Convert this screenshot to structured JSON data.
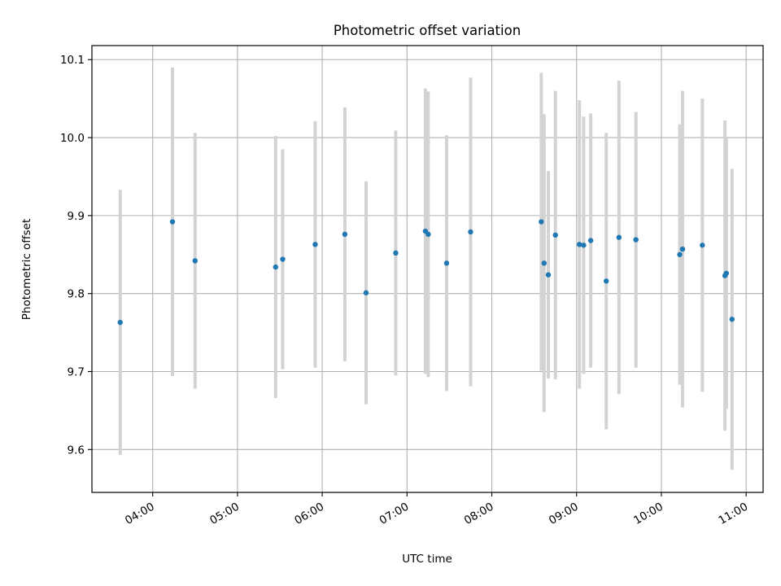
{
  "chart_data": {
    "type": "scatter",
    "title": "Photometric offset variation",
    "xlabel": "UTC time",
    "ylabel": "Photometric offset",
    "x_unit": "UTC time (HH:MM)",
    "xlim": [
      "03:17",
      "11:12"
    ],
    "ylim": [
      9.545,
      10.118
    ],
    "grid": true,
    "xticks": [
      "04:00",
      "05:00",
      "06:00",
      "07:00",
      "08:00",
      "09:00",
      "10:00",
      "11:00"
    ],
    "yticks": [
      "9.6",
      "9.7",
      "9.8",
      "9.9",
      "10.0",
      "10.1"
    ],
    "xticks_rotation_deg": 30,
    "marker_color": "#1f77b4",
    "errorbar_color": "#d3d3d3",
    "series": [
      {
        "points": [
          {
            "x": "03:37",
            "y": 9.763,
            "yerr": 0.17
          },
          {
            "x": "04:14",
            "y": 9.892,
            "yerr": 0.198
          },
          {
            "x": "04:30",
            "y": 9.842,
            "yerr": 0.164
          },
          {
            "x": "05:27",
            "y": 9.834,
            "yerr": 0.168
          },
          {
            "x": "05:32",
            "y": 9.844,
            "yerr": 0.141
          },
          {
            "x": "05:55",
            "y": 9.863,
            "yerr": 0.158
          },
          {
            "x": "06:16",
            "y": 9.876,
            "yerr": 0.163
          },
          {
            "x": "06:31",
            "y": 9.801,
            "yerr": 0.143
          },
          {
            "x": "06:52",
            "y": 9.852,
            "yerr": 0.157
          },
          {
            "x": "07:13",
            "y": 9.88,
            "yerr": 0.183
          },
          {
            "x": "07:15",
            "y": 9.876,
            "yerr": 0.183
          },
          {
            "x": "07:28",
            "y": 9.839,
            "yerr": 0.164
          },
          {
            "x": "07:45",
            "y": 9.879,
            "yerr": 0.198
          },
          {
            "x": "08:35",
            "y": 9.892,
            "yerr": 0.191
          },
          {
            "x": "08:37",
            "y": 9.839,
            "yerr": 0.191
          },
          {
            "x": "08:40",
            "y": 9.824,
            "yerr": 0.133
          },
          {
            "x": "08:45",
            "y": 9.875,
            "yerr": 0.185
          },
          {
            "x": "09:02",
            "y": 9.863,
            "yerr": 0.185
          },
          {
            "x": "09:05",
            "y": 9.862,
            "yerr": 0.165
          },
          {
            "x": "09:10",
            "y": 9.868,
            "yerr": 0.163
          },
          {
            "x": "09:21",
            "y": 9.816,
            "yerr": 0.19
          },
          {
            "x": "09:30",
            "y": 9.872,
            "yerr": 0.201
          },
          {
            "x": "09:42",
            "y": 9.869,
            "yerr": 0.164
          },
          {
            "x": "10:13",
            "y": 9.85,
            "yerr": 0.167
          },
          {
            "x": "10:15",
            "y": 9.857,
            "yerr": 0.203
          },
          {
            "x": "10:29",
            "y": 9.862,
            "yerr": 0.188
          },
          {
            "x": "10:45",
            "y": 9.823,
            "yerr": 0.199
          },
          {
            "x": "10:46",
            "y": 9.826,
            "yerr": 0.174
          },
          {
            "x": "10:50",
            "y": 9.767,
            "yerr": 0.193
          }
        ]
      }
    ]
  }
}
